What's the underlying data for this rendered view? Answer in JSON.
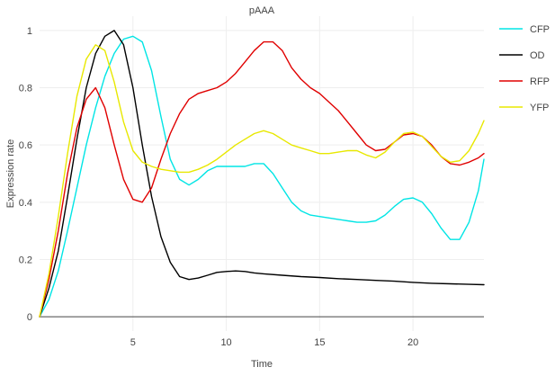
{
  "chart_data": {
    "type": "line",
    "title": "pAAA",
    "xlabel": "Time",
    "ylabel": "Expression rate",
    "xlim": [
      0,
      23.8
    ],
    "ylim": [
      -0.05,
      1.05
    ],
    "xticks": [
      5,
      10,
      15,
      20
    ],
    "xtick_labels": [
      "5",
      "10",
      "15",
      "20"
    ],
    "yticks": [
      0,
      0.2,
      0.4,
      0.6,
      0.8,
      1
    ],
    "ytick_labels": [
      "0",
      "0.2",
      "0.4",
      "0.6",
      "0.8",
      "1"
    ],
    "grid": true,
    "legend_position": "right",
    "series": [
      {
        "name": "CFP",
        "color": "#00e5e5",
        "x": [
          0,
          0.5,
          1,
          1.5,
          2,
          2.5,
          3,
          3.5,
          4,
          4.5,
          5,
          5.5,
          6,
          6.5,
          7,
          7.5,
          8,
          8.5,
          9,
          9.5,
          10,
          10.5,
          11,
          11.5,
          12,
          12.5,
          13,
          13.5,
          14,
          14.5,
          15,
          15.5,
          16,
          16.5,
          17,
          17.5,
          18,
          18.5,
          19,
          19.5,
          20,
          20.5,
          21,
          21.5,
          22,
          22.5,
          23,
          23.5,
          23.8
        ],
        "y": [
          0,
          0.06,
          0.16,
          0.3,
          0.45,
          0.6,
          0.73,
          0.84,
          0.92,
          0.97,
          0.98,
          0.96,
          0.86,
          0.7,
          0.55,
          0.48,
          0.46,
          0.48,
          0.51,
          0.525,
          0.525,
          0.525,
          0.525,
          0.535,
          0.535,
          0.5,
          0.45,
          0.4,
          0.37,
          0.355,
          0.35,
          0.345,
          0.34,
          0.335,
          0.33,
          0.33,
          0.335,
          0.355,
          0.385,
          0.41,
          0.415,
          0.4,
          0.36,
          0.31,
          0.27,
          0.27,
          0.33,
          0.44,
          0.55
        ]
      },
      {
        "name": "OD",
        "color": "#000000",
        "x": [
          0,
          0.5,
          1,
          1.5,
          2,
          2.5,
          3,
          3.5,
          4,
          4.5,
          5,
          5.5,
          6,
          6.5,
          7,
          7.5,
          8,
          8.5,
          9,
          9.5,
          10,
          10.5,
          11,
          11.5,
          12,
          13,
          14,
          15,
          16,
          17,
          18,
          19,
          20,
          21,
          22,
          23,
          23.8
        ],
        "y": [
          0,
          0.1,
          0.23,
          0.42,
          0.62,
          0.8,
          0.92,
          0.98,
          1,
          0.95,
          0.8,
          0.6,
          0.42,
          0.28,
          0.19,
          0.14,
          0.13,
          0.135,
          0.145,
          0.155,
          0.158,
          0.16,
          0.158,
          0.153,
          0.15,
          0.145,
          0.14,
          0.137,
          0.133,
          0.13,
          0.127,
          0.124,
          0.12,
          0.117,
          0.115,
          0.113,
          0.112
        ]
      },
      {
        "name": "RFP",
        "color": "#e00000",
        "x": [
          0,
          0.5,
          1,
          1.5,
          2,
          2.5,
          3,
          3.5,
          4,
          4.5,
          5,
          5.5,
          6,
          6.5,
          7,
          7.5,
          8,
          8.5,
          9,
          9.5,
          10,
          10.5,
          11,
          11.5,
          12,
          12.5,
          13,
          13.5,
          14,
          14.5,
          15,
          15.5,
          16,
          16.5,
          17,
          17.5,
          18,
          18.5,
          19,
          19.5,
          20,
          20.5,
          21,
          21.5,
          22,
          22.5,
          23,
          23.5,
          23.8
        ],
        "y": [
          0,
          0.13,
          0.3,
          0.5,
          0.66,
          0.76,
          0.8,
          0.73,
          0.6,
          0.48,
          0.41,
          0.4,
          0.45,
          0.55,
          0.64,
          0.71,
          0.76,
          0.78,
          0.79,
          0.8,
          0.82,
          0.85,
          0.89,
          0.93,
          0.96,
          0.96,
          0.93,
          0.87,
          0.83,
          0.8,
          0.78,
          0.75,
          0.72,
          0.68,
          0.64,
          0.6,
          0.58,
          0.585,
          0.61,
          0.635,
          0.64,
          0.63,
          0.6,
          0.56,
          0.535,
          0.53,
          0.54,
          0.555,
          0.57
        ]
      },
      {
        "name": "YFP",
        "color": "#e8e800",
        "x": [
          0,
          0.5,
          1,
          1.5,
          2,
          2.5,
          3,
          3.5,
          4,
          4.5,
          5,
          5.5,
          6,
          6.5,
          7,
          7.5,
          8,
          8.5,
          9,
          9.5,
          10,
          10.5,
          11,
          11.5,
          12,
          12.5,
          13,
          13.5,
          14,
          14.5,
          15,
          15.5,
          16,
          16.5,
          17,
          17.5,
          18,
          18.5,
          19,
          19.5,
          20,
          20.5,
          21,
          21.5,
          22,
          22.5,
          23,
          23.5,
          23.8
        ],
        "y": [
          0,
          0.15,
          0.35,
          0.57,
          0.77,
          0.9,
          0.95,
          0.93,
          0.82,
          0.68,
          0.58,
          0.54,
          0.525,
          0.515,
          0.51,
          0.505,
          0.505,
          0.515,
          0.53,
          0.55,
          0.575,
          0.6,
          0.62,
          0.64,
          0.65,
          0.64,
          0.62,
          0.6,
          0.59,
          0.58,
          0.57,
          0.57,
          0.575,
          0.58,
          0.58,
          0.565,
          0.555,
          0.575,
          0.61,
          0.64,
          0.645,
          0.63,
          0.595,
          0.56,
          0.54,
          0.545,
          0.58,
          0.64,
          0.685
        ]
      }
    ]
  }
}
